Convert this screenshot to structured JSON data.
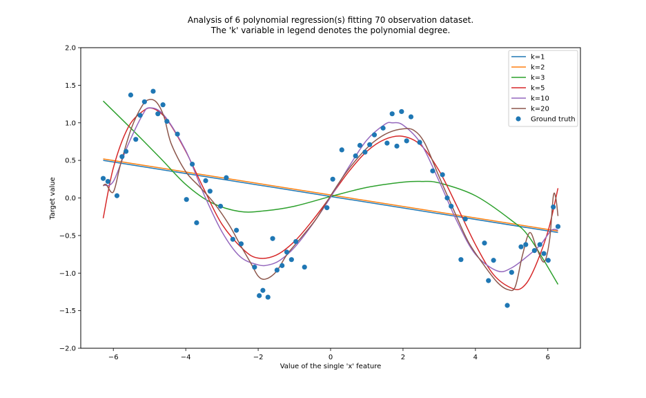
{
  "chart_data": {
    "type": "line",
    "title": "Analysis of 6 polynomial regression(s) fitting 70 observation dataset.",
    "subtitle": "The 'k' variable in legend denotes the polynomial degree.",
    "xlabel": "Value of the single 'x' feature",
    "ylabel": "Target value",
    "xlim": [
      -6.9,
      6.9
    ],
    "ylim": [
      -2.0,
      2.0
    ],
    "xticks": [
      -6,
      -4,
      -2,
      0,
      2,
      4,
      6
    ],
    "yticks": [
      -2.0,
      -1.5,
      -1.0,
      -0.5,
      0.0,
      0.5,
      1.0,
      1.5,
      2.0
    ],
    "xtick_labels": [
      "−6",
      "−4",
      "−2",
      "0",
      "2",
      "4",
      "6"
    ],
    "ytick_labels": [
      "−2.0",
      "−1.5",
      "−1.0",
      "−0.5",
      "0.0",
      "0.5",
      "1.0",
      "1.5",
      "2.0"
    ],
    "grid": false,
    "legend_position": "top-right",
    "series": [
      {
        "name": "k=1",
        "color": "#1f77b4",
        "x": [
          -6.28,
          6.28
        ],
        "y": [
          0.5,
          -0.46
        ]
      },
      {
        "name": "k=2",
        "color": "#ff7f0e",
        "x": [
          -6.28,
          6.28
        ],
        "y": [
          0.52,
          -0.44
        ]
      },
      {
        "name": "k=3",
        "color": "#2ca02c",
        "x": [
          -6.28,
          -5.5,
          -4.7,
          -4.0,
          -3.3,
          -2.5,
          -1.8,
          -1.0,
          0.0,
          1.0,
          2.0,
          2.5,
          3.0,
          4.0,
          5.0,
          5.5,
          6.28
        ],
        "y": [
          1.29,
          0.92,
          0.53,
          0.18,
          -0.06,
          -0.18,
          -0.17,
          -0.11,
          0.02,
          0.14,
          0.21,
          0.22,
          0.2,
          0.03,
          -0.3,
          -0.53,
          -1.15
        ]
      },
      {
        "name": "k=5",
        "color": "#d62728",
        "x": [
          -6.28,
          -6.0,
          -5.6,
          -5.2,
          -4.9,
          -4.5,
          -4.0,
          -3.5,
          -3.0,
          -2.4,
          -2.0,
          -1.5,
          -1.0,
          -0.5,
          0.0,
          0.5,
          1.0,
          1.5,
          2.0,
          2.5,
          3.0,
          3.5,
          4.0,
          4.5,
          5.0,
          5.3,
          5.6,
          6.0,
          6.28
        ],
        "y": [
          -0.27,
          0.4,
          0.93,
          1.15,
          1.19,
          1.03,
          0.62,
          0.12,
          -0.35,
          -0.69,
          -0.8,
          -0.76,
          -0.58,
          -0.3,
          0.02,
          0.35,
          0.62,
          0.78,
          0.82,
          0.7,
          0.36,
          -0.12,
          -0.62,
          -1.02,
          -1.2,
          -1.19,
          -0.97,
          -0.45,
          0.13
        ]
      },
      {
        "name": "k=10",
        "color": "#9467bd",
        "x": [
          -6.28,
          -6.0,
          -5.6,
          -5.2,
          -5.0,
          -4.6,
          -4.0,
          -3.5,
          -3.0,
          -2.5,
          -2.0,
          -1.7,
          -1.4,
          -1.0,
          -0.5,
          0.0,
          0.5,
          1.0,
          1.5,
          1.7,
          2.0,
          2.5,
          3.0,
          3.5,
          4.0,
          4.6,
          5.0,
          5.5,
          5.8,
          6.1,
          6.28
        ],
        "y": [
          0.17,
          0.22,
          0.7,
          1.1,
          1.2,
          1.1,
          0.63,
          0.05,
          -0.45,
          -0.78,
          -0.89,
          -0.89,
          -0.83,
          -0.66,
          -0.35,
          0.01,
          0.41,
          0.77,
          0.98,
          1.0,
          0.97,
          0.72,
          0.22,
          -0.32,
          -0.75,
          -0.97,
          -0.93,
          -0.75,
          -0.62,
          -0.43,
          -0.43
        ]
      },
      {
        "name": "k=20",
        "color": "#8c564b",
        "x": [
          -6.28,
          -6.2,
          -6.0,
          -5.8,
          -5.5,
          -5.2,
          -5.0,
          -4.8,
          -4.6,
          -4.4,
          -4.0,
          -3.6,
          -3.2,
          -2.8,
          -2.5,
          -2.2,
          -2.0,
          -1.8,
          -1.5,
          -1.2,
          -0.8,
          -0.4,
          0.0,
          0.4,
          0.8,
          1.2,
          1.6,
          2.0,
          2.3,
          2.6,
          3.0,
          3.4,
          3.8,
          4.2,
          4.6,
          4.9,
          5.1,
          5.3,
          5.5,
          5.7,
          5.9,
          6.05,
          6.15,
          6.22,
          6.28
        ],
        "y": [
          0.16,
          0.18,
          0.08,
          0.45,
          0.93,
          1.23,
          1.31,
          1.27,
          1.08,
          0.72,
          0.35,
          0.14,
          -0.08,
          -0.36,
          -0.62,
          -0.87,
          -1.04,
          -1.08,
          -0.98,
          -0.75,
          -0.52,
          -0.28,
          0.03,
          0.32,
          0.56,
          0.75,
          0.87,
          0.92,
          0.9,
          0.73,
          0.28,
          -0.16,
          -0.58,
          -0.87,
          -1.12,
          -1.22,
          -1.18,
          -0.76,
          -0.46,
          -0.68,
          -0.85,
          -0.55,
          0.02,
          0.0,
          -0.24
        ]
      }
    ],
    "scatter": {
      "name": "Ground truth",
      "color": "#1f77b4",
      "x": [
        -6.28,
        -6.15,
        -5.9,
        -5.76,
        -5.65,
        -5.52,
        -5.38,
        -5.26,
        -5.14,
        -4.9,
        -4.77,
        -4.63,
        -4.52,
        -4.23,
        -3.98,
        -3.82,
        -3.7,
        -3.45,
        -3.33,
        -3.04,
        -2.88,
        -2.7,
        -2.6,
        -2.47,
        -2.1,
        -1.97,
        -1.87,
        -1.73,
        -1.6,
        -1.48,
        -1.34,
        -1.21,
        -1.08,
        -0.96,
        -0.72,
        -0.1,
        0.06,
        0.31,
        0.69,
        0.81,
        0.95,
        1.08,
        1.21,
        1.45,
        1.56,
        1.7,
        1.83,
        1.96,
        2.1,
        2.22,
        2.46,
        2.82,
        3.09,
        3.22,
        3.33,
        3.6,
        3.72,
        4.25,
        4.36,
        4.5,
        4.88,
        5.0,
        5.26,
        5.39,
        5.63,
        5.78,
        5.89,
        6.01,
        6.15,
        6.28
      ],
      "y": [
        0.26,
        0.22,
        0.03,
        0.55,
        0.62,
        1.37,
        0.78,
        1.1,
        1.28,
        1.42,
        1.12,
        1.24,
        1.02,
        0.85,
        -0.02,
        0.45,
        -0.33,
        0.23,
        0.09,
        -0.11,
        0.27,
        -0.55,
        -0.43,
        -0.61,
        -0.92,
        -1.3,
        -1.23,
        -1.32,
        -0.54,
        -0.96,
        -0.9,
        -0.72,
        -0.82,
        -0.58,
        -0.92,
        -0.13,
        0.25,
        0.64,
        0.56,
        0.7,
        0.61,
        0.71,
        0.84,
        0.93,
        0.73,
        1.12,
        0.69,
        1.15,
        0.76,
        1.08,
        0.74,
        0.36,
        0.31,
        0.0,
        -0.11,
        -0.82,
        -0.28,
        -0.6,
        -1.1,
        -0.83,
        -1.43,
        -0.99,
        -0.65,
        -0.62,
        -0.7,
        -0.62,
        -0.74,
        -0.83,
        -0.12,
        -0.38
      ]
    }
  }
}
